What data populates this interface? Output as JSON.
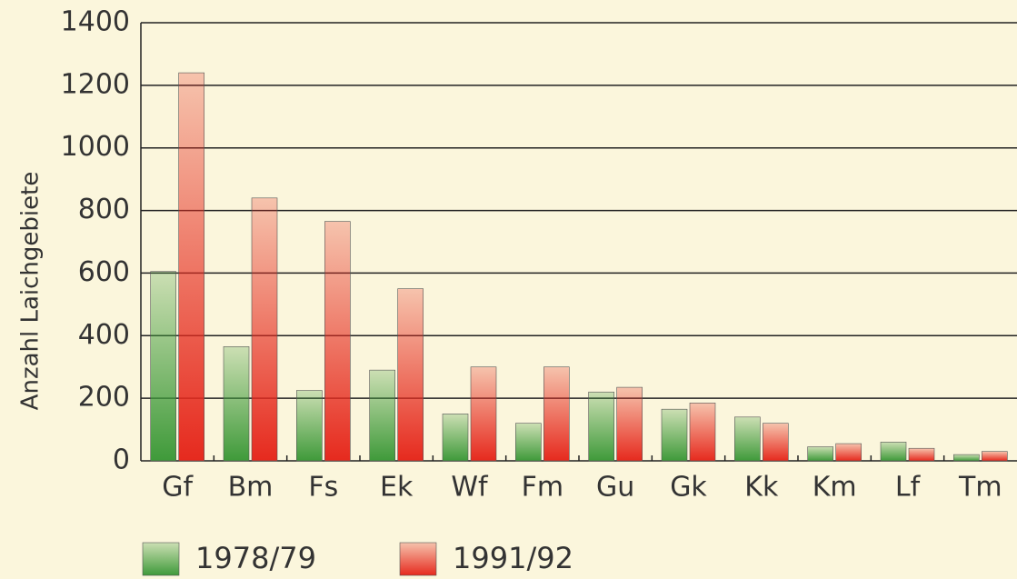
{
  "chart_data": {
    "type": "bar",
    "y_label": "Anzahl Laichgebiete",
    "categories": [
      "Gf",
      "Bm",
      "Fs",
      "Ek",
      "Wf",
      "Fm",
      "Gu",
      "Gk",
      "Kk",
      "Km",
      "Lf",
      "Tm"
    ],
    "series": [
      {
        "name": "1978/79",
        "color": "#3f9a3a",
        "values": [
          605,
          365,
          225,
          290,
          150,
          120,
          220,
          165,
          140,
          45,
          60,
          20
        ]
      },
      {
        "name": "1991/92",
        "color": "#e62a1e",
        "values": [
          1240,
          840,
          765,
          550,
          300,
          300,
          235,
          185,
          120,
          55,
          40,
          30
        ]
      }
    ],
    "ylim": [
      0,
      1400
    ],
    "yticks": [
      0,
      200,
      400,
      600,
      800,
      1000,
      1200,
      1400
    ],
    "grid": true
  }
}
